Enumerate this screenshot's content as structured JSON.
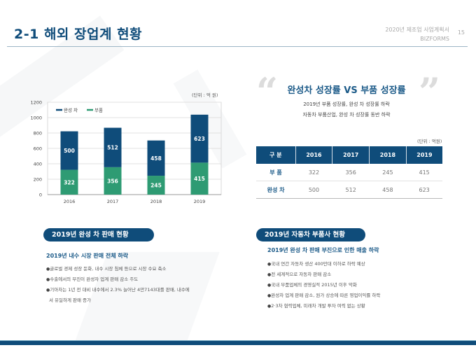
{
  "header": {
    "title": "2-1 해외 장업계 현황",
    "doc_name": "2020년 제조업 사업계획서",
    "brand": "BIZFORMS",
    "page_number": "15"
  },
  "colors": {
    "primary": "#0f4c7a",
    "green": "#2e9b73",
    "accent_text": "#1b5a88"
  },
  "chart_data": {
    "type": "bar",
    "stacked": true,
    "unit_label": "(단위 : 억 원)",
    "categories": [
      "2016",
      "2017",
      "2018",
      "2019"
    ],
    "series": [
      {
        "name": "부품",
        "color": "#2e9b73",
        "values": [
          322,
          356,
          245,
          415
        ]
      },
      {
        "name": "완성 차",
        "color": "#0f4c7a",
        "values": [
          500,
          512,
          458,
          623
        ]
      }
    ],
    "legend_order": [
      "완성 차",
      "부품"
    ],
    "ylim": [
      0,
      1200
    ],
    "yticks": [
      "0",
      "200",
      "400",
      "600",
      "800",
      "1000",
      "1200"
    ],
    "grid": true,
    "legend_position": "top-left"
  },
  "highlight": {
    "title": "완성차 성장률 VS 부품 성장률",
    "open_quote": "“",
    "close_quote": "”",
    "lines": [
      "2019년 부품 성장률, 완성 차 성장률 하락",
      "자동차 부품산업, 완성 차 성장률 동반 하락"
    ]
  },
  "table": {
    "unit_label": "(단위 : 억원)",
    "headers": [
      "구 분",
      "2016",
      "2017",
      "2018",
      "2019"
    ],
    "rows": [
      [
        "부 품",
        "322",
        "356",
        "245",
        "415"
      ],
      [
        "완성 차",
        "500",
        "512",
        "458",
        "623"
      ]
    ]
  },
  "section_left": {
    "pill": "2019년 완성 차 판매 현황",
    "subtitle": "2019년 내수 시장 판매 전체 하락",
    "bullets": [
      "글로벌 경제 성장 둔화, 내수 시장 침체 등으로 시장 수요 축소",
      "수출에서의 부진이 완성자 업계 판매 감소 주도",
      "기아차는 1년 전 대비 내수에서 2.3% 늘어난 4만7143대를 판매,  내수에",
      "서 유일하게 판매 증가"
    ]
  },
  "section_right": {
    "pill": "2019년 자동차 부품사 현황",
    "subtitle": "2019년 완성 차 판매 부진으로 인한 매출 하락",
    "bullets": [
      "국내 연간 자동차 생산 400만대 이하로 하락 예상",
      "전 세계적으로 자동차 판매 감소",
      "국내 부품업체의 경영실적 2015년 이후 악화",
      "완성차 업계 판매 감소,  원가 상승에 따른 영업이익률 하락",
      "2·3차 협력업체, 미래차 개발 투자 여력 없는 상황"
    ]
  }
}
